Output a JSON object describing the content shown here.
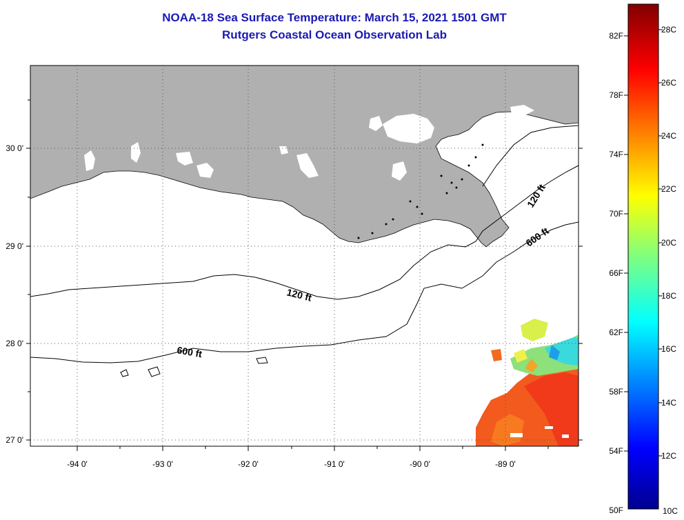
{
  "header": {
    "title_line1": "NOAA-18 Sea Surface Temperature:  March 15, 2021 1501 GMT",
    "title_line2": "Rutgers Coastal Ocean Observation Lab"
  },
  "map": {
    "lon_range": [
      -94.55,
      -88.3
    ],
    "lat_range": [
      26.94,
      29.85
    ],
    "lon_ticks": [
      "-94 0'",
      "-93 0'",
      "-92 0'",
      "-91 0'",
      "-90 0'",
      "-89 0'"
    ],
    "lat_ticks": [
      "30 0'",
      "29 0'",
      "28 0'",
      "27 0'"
    ],
    "grid": "dotted",
    "land_color": "#b0b0b0",
    "contours": [
      {
        "label": "120 ft"
      },
      {
        "label": "120 ft"
      },
      {
        "label": "600 ft"
      },
      {
        "label": "600 ft"
      }
    ]
  },
  "colorbar": {
    "fahrenheit_labels": [
      "82F",
      "78F",
      "74F",
      "70F",
      "66F",
      "62F",
      "58F",
      "54F",
      "50F"
    ],
    "celsius_labels": [
      "28C",
      "26C",
      "24C",
      "22C",
      "20C",
      "18C",
      "16C",
      "14C",
      "12C",
      "10C"
    ],
    "range_celsius": [
      10,
      29
    ]
  }
}
